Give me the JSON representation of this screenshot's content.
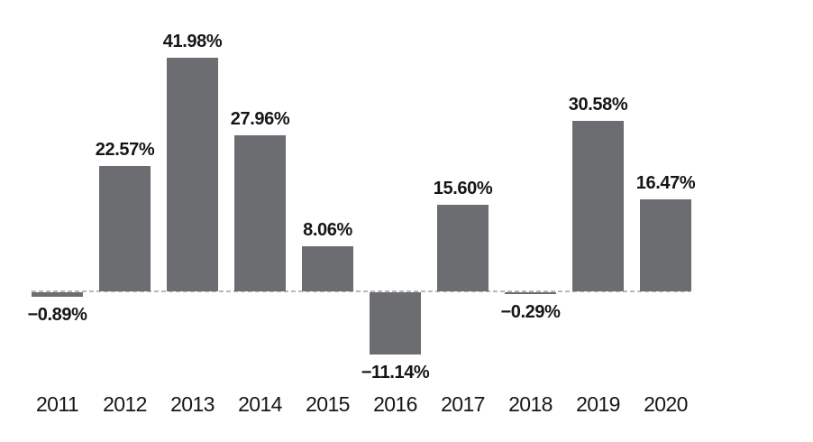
{
  "chart_data": {
    "type": "bar",
    "categories": [
      "2011",
      "2012",
      "2013",
      "2014",
      "2015",
      "2016",
      "2017",
      "2018",
      "2019",
      "2020"
    ],
    "values": [
      -0.89,
      22.57,
      41.98,
      27.96,
      8.06,
      -11.14,
      15.6,
      -0.29,
      30.58,
      16.47
    ],
    "value_labels": [
      "−0.89%",
      "22.57%",
      "41.98%",
      "27.96%",
      "8.06%",
      "−11.14%",
      "15.60%",
      "−0.29%",
      "30.58%",
      "16.47%"
    ],
    "title": "",
    "xlabel": "",
    "ylabel": "",
    "ylim": [
      -15,
      45
    ],
    "grid": false,
    "legend_position": "none",
    "baseline_value": 0,
    "bar_color": "#6c6d70",
    "baseline_color": "#b8b8b8",
    "label_color": "#161616",
    "background_color": "#ffffff"
  }
}
